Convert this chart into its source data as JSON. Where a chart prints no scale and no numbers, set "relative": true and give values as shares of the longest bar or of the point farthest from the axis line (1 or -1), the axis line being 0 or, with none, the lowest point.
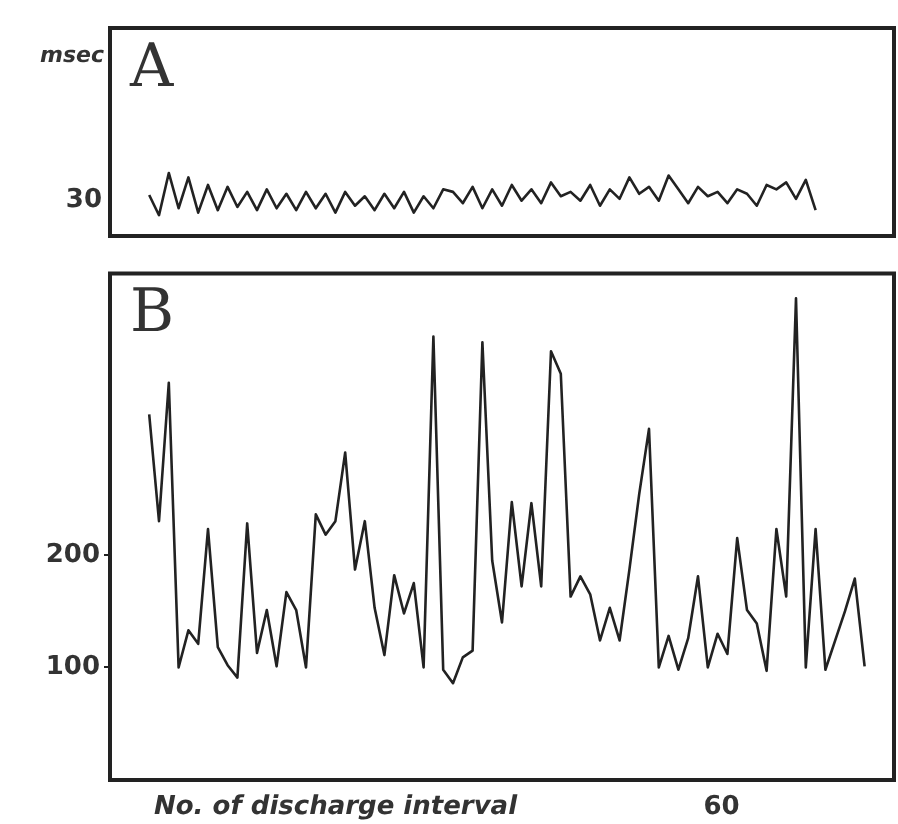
{
  "chart_data": [
    {
      "type": "line",
      "title": "A",
      "ylabel": "msec",
      "annotations": [
        "30"
      ],
      "relative": true,
      "categories": [
        null,
        null,
        null,
        null,
        null,
        null,
        null,
        null,
        null,
        null,
        null,
        null,
        null,
        null,
        null,
        null,
        null,
        null,
        null,
        null,
        null,
        null,
        null,
        null,
        null,
        null,
        null,
        null,
        null,
        null,
        null,
        null,
        null,
        null,
        null,
        null,
        null,
        null,
        null,
        null,
        null,
        null,
        null,
        null,
        null,
        null,
        null,
        null,
        null,
        null,
        null,
        null,
        null,
        null,
        null,
        null,
        null,
        null,
        null,
        null,
        null,
        null,
        null,
        null,
        null,
        null,
        null,
        null,
        null
      ],
      "series": [
        {
          "color": "#222222",
          "values": [
            0.65,
            0.33,
            1,
            0.44,
            0.93,
            0.37,
            0.81,
            0.41,
            0.78,
            0.46,
            0.7,
            0.41,
            0.74,
            0.44,
            0.67,
            0.41,
            0.7,
            0.44,
            0.67,
            0.37,
            0.7,
            0.48,
            0.63,
            0.41,
            0.67,
            0.44,
            0.7,
            0.37,
            0.63,
            0.44,
            0.74,
            0.7,
            0.52,
            0.78,
            0.44,
            0.74,
            0.48,
            0.81,
            0.56,
            0.74,
            0.52,
            0.85,
            0.63,
            0.7,
            0.56,
            0.81,
            0.48,
            0.74,
            0.59,
            0.93,
            0.67,
            0.78,
            0.56,
            0.96,
            0.74,
            0.52,
            0.78,
            0.63,
            0.7,
            0.52,
            0.74,
            0.67,
            0.48,
            0.81,
            0.74,
            0.85,
            0.59,
            0.89,
            0.41
          ]
        }
      ],
      "tick_labels": false,
      "grid": false,
      "legend": false,
      "marker": "none"
    },
    {
      "type": "line",
      "title": "B",
      "xlabel": "No. of discharge interval",
      "annotations": [
        "60"
      ],
      "categories": [
        null,
        null,
        null,
        null,
        null,
        null,
        null,
        null,
        null,
        null,
        null,
        null,
        null,
        null,
        null,
        null,
        null,
        null,
        null,
        null,
        null,
        null,
        null,
        null,
        null,
        null,
        null,
        null,
        null,
        null,
        null,
        null,
        null,
        null,
        null,
        null,
        null,
        null,
        null,
        null,
        null,
        null,
        null,
        null,
        null,
        null,
        null,
        null,
        null,
        null,
        null,
        null,
        null,
        null,
        null,
        null,
        null,
        null,
        null,
        null,
        null,
        null,
        null,
        null,
        null,
        null,
        null,
        null,
        null,
        null,
        null,
        null,
        null,
        null
      ],
      "series": [
        {
          "color": "#222222",
          "values": [
            325,
            230,
            353,
            100,
            133,
            121,
            223,
            118,
            102,
            91,
            228,
            113,
            151,
            101,
            167,
            151,
            100,
            236,
            218,
            230,
            291,
            187,
            230,
            153,
            111,
            182,
            148,
            175,
            100,
            394,
            98,
            86,
            109,
            115,
            389,
            195,
            140,
            247,
            172,
            246,
            172,
            381,
            361,
            163,
            181,
            165,
            124,
            153,
            124,
            187,
            254,
            312,
            100,
            128,
            98,
            126,
            181,
            100,
            130,
            112,
            215,
            151,
            139,
            97,
            223,
            163,
            428,
            100,
            223,
            98,
            124,
            150,
            179,
            101
          ]
        }
      ],
      "ylim": [
        0,
        450
      ],
      "yticks": [
        100,
        200
      ],
      "tick_labels": "y",
      "grid": false,
      "legend": false,
      "marker": "none"
    }
  ]
}
